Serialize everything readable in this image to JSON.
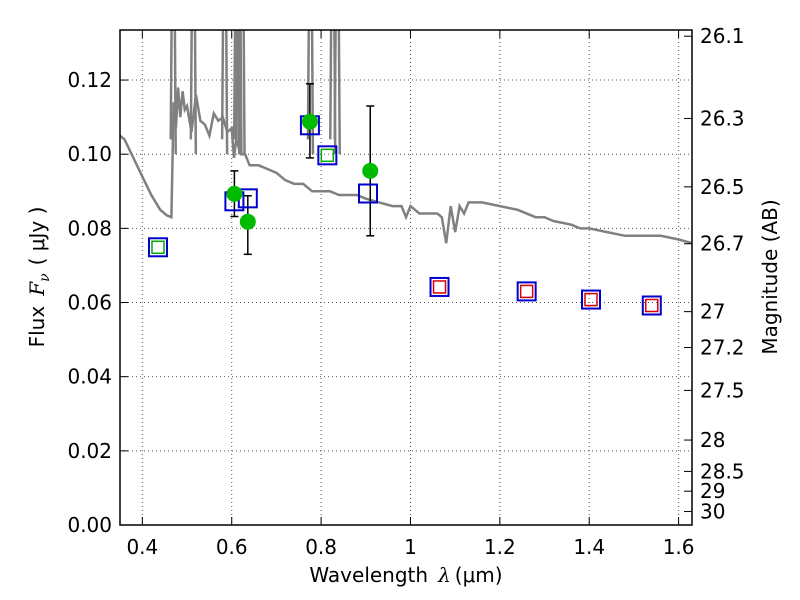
{
  "chart_data": {
    "type": "scatter",
    "xlabel_prefix": "Wavelength",
    "xlabel_symbol": "λ",
    "xlabel_units": "(μm)",
    "ylabel_prefix": "Flux",
    "ylabel_symbol": "F",
    "ylabel_sub": "ν",
    "ylabel_units": "( μJy )",
    "y2label": "Magnitude (AB)",
    "xlim": [
      0.35,
      1.63
    ],
    "ylim": [
      0.0,
      0.1335
    ],
    "grid": true,
    "x_ticks": [
      0.4,
      0.6,
      0.8,
      1.0,
      1.2,
      1.4,
      1.6
    ],
    "x_tick_labels": [
      "0.4",
      "0.6",
      "0.8",
      "1",
      "1.2",
      "1.4",
      "1.6"
    ],
    "y_ticks": [
      0.0,
      0.02,
      0.04,
      0.06,
      0.08,
      0.1,
      0.12
    ],
    "y_tick_labels": [
      "0.00",
      "0.02",
      "0.04",
      "0.06",
      "0.08",
      "0.10",
      "0.12"
    ],
    "mag_ticks": [
      26.1,
      26.3,
      26.5,
      26.7,
      27,
      27.2,
      27.5,
      28,
      28.5,
      29,
      30
    ],
    "mag_tick_labels": [
      "26.1",
      "26.3",
      "26.5",
      "26.7",
      "27",
      "27.2",
      "27.5",
      "28",
      "28.5",
      "29",
      "30"
    ],
    "colors": {
      "model": "#808080",
      "observed": "#00bb00",
      "model_box": "#0000cc",
      "inner_green": "#00aa00",
      "inner_red": "#dd0000",
      "errorbar": "#000000",
      "grid": "#555555"
    },
    "series": [
      {
        "name": "model_spectrum",
        "kind": "line",
        "x": [
          0.35,
          0.36,
          0.38,
          0.4,
          0.42,
          0.44,
          0.455,
          0.465,
          0.47,
          0.475,
          0.48,
          0.485,
          0.49,
          0.495,
          0.5,
          0.51,
          0.52,
          0.53,
          0.54,
          0.55,
          0.56,
          0.57,
          0.58,
          0.59,
          0.6,
          0.605,
          0.61,
          0.62,
          0.63,
          0.64,
          0.65,
          0.66,
          0.68,
          0.7,
          0.72,
          0.74,
          0.76,
          0.78,
          0.8,
          0.82,
          0.84,
          0.86,
          0.88,
          0.9,
          0.93,
          0.96,
          0.98,
          0.99,
          1.0,
          1.02,
          1.04,
          1.06,
          1.07,
          1.08,
          1.09,
          1.1,
          1.11,
          1.12,
          1.13,
          1.16,
          1.2,
          1.24,
          1.28,
          1.3,
          1.32,
          1.36,
          1.38,
          1.4,
          1.44,
          1.48,
          1.52,
          1.56,
          1.6,
          1.63
        ],
        "y": [
          0.105,
          0.104,
          0.099,
          0.094,
          0.089,
          0.085,
          0.0835,
          0.083,
          0.114,
          0.107,
          0.118,
          0.11,
          0.117,
          0.112,
          0.113,
          0.106,
          0.116,
          0.109,
          0.108,
          0.105,
          0.111,
          0.109,
          0.11,
          0.106,
          0.107,
          0.099,
          0.104,
          0.1,
          0.1,
          0.097,
          0.097,
          0.097,
          0.096,
          0.095,
          0.093,
          0.092,
          0.092,
          0.09,
          0.09,
          0.09,
          0.089,
          0.089,
          0.089,
          0.088,
          0.087,
          0.086,
          0.086,
          0.083,
          0.086,
          0.084,
          0.084,
          0.084,
          0.083,
          0.076,
          0.086,
          0.079,
          0.086,
          0.084,
          0.087,
          0.087,
          0.086,
          0.085,
          0.083,
          0.083,
          0.082,
          0.081,
          0.08,
          0.08,
          0.079,
          0.078,
          0.078,
          0.078,
          0.077,
          0.076
        ]
      },
      {
        "name": "emission_lines",
        "kind": "spikes",
        "x": [
          0.468,
          0.513,
          0.583,
          0.61,
          0.615,
          0.622,
          0.775,
          0.825,
          0.835
        ],
        "y": [
          0.14,
          0.14,
          0.14,
          0.14,
          0.14,
          0.14,
          0.14,
          0.14,
          0.14
        ]
      },
      {
        "name": "observed_flux",
        "kind": "points",
        "x": [
          0.606,
          0.636,
          0.775,
          0.91
        ],
        "y": [
          0.0893,
          0.0818,
          0.1088,
          0.0955
        ],
        "yerr_low": [
          0.0832,
          0.073,
          0.099,
          0.078
        ],
        "yerr_high": [
          0.0955,
          0.0888,
          0.119,
          0.113
        ]
      },
      {
        "name": "model_photometry",
        "kind": "boxes",
        "x": [
          0.435,
          0.606,
          0.636,
          0.775,
          0.814,
          0.905,
          1.065,
          1.26,
          1.404,
          1.54
        ],
        "y": [
          0.0749,
          0.0873,
          0.0881,
          0.1078,
          0.0997,
          0.0894,
          0.0642,
          0.063,
          0.0608,
          0.0592
        ],
        "inner": [
          "green",
          "none",
          "none",
          "none",
          "green",
          "none",
          "red",
          "red",
          "red",
          "red"
        ]
      }
    ]
  }
}
